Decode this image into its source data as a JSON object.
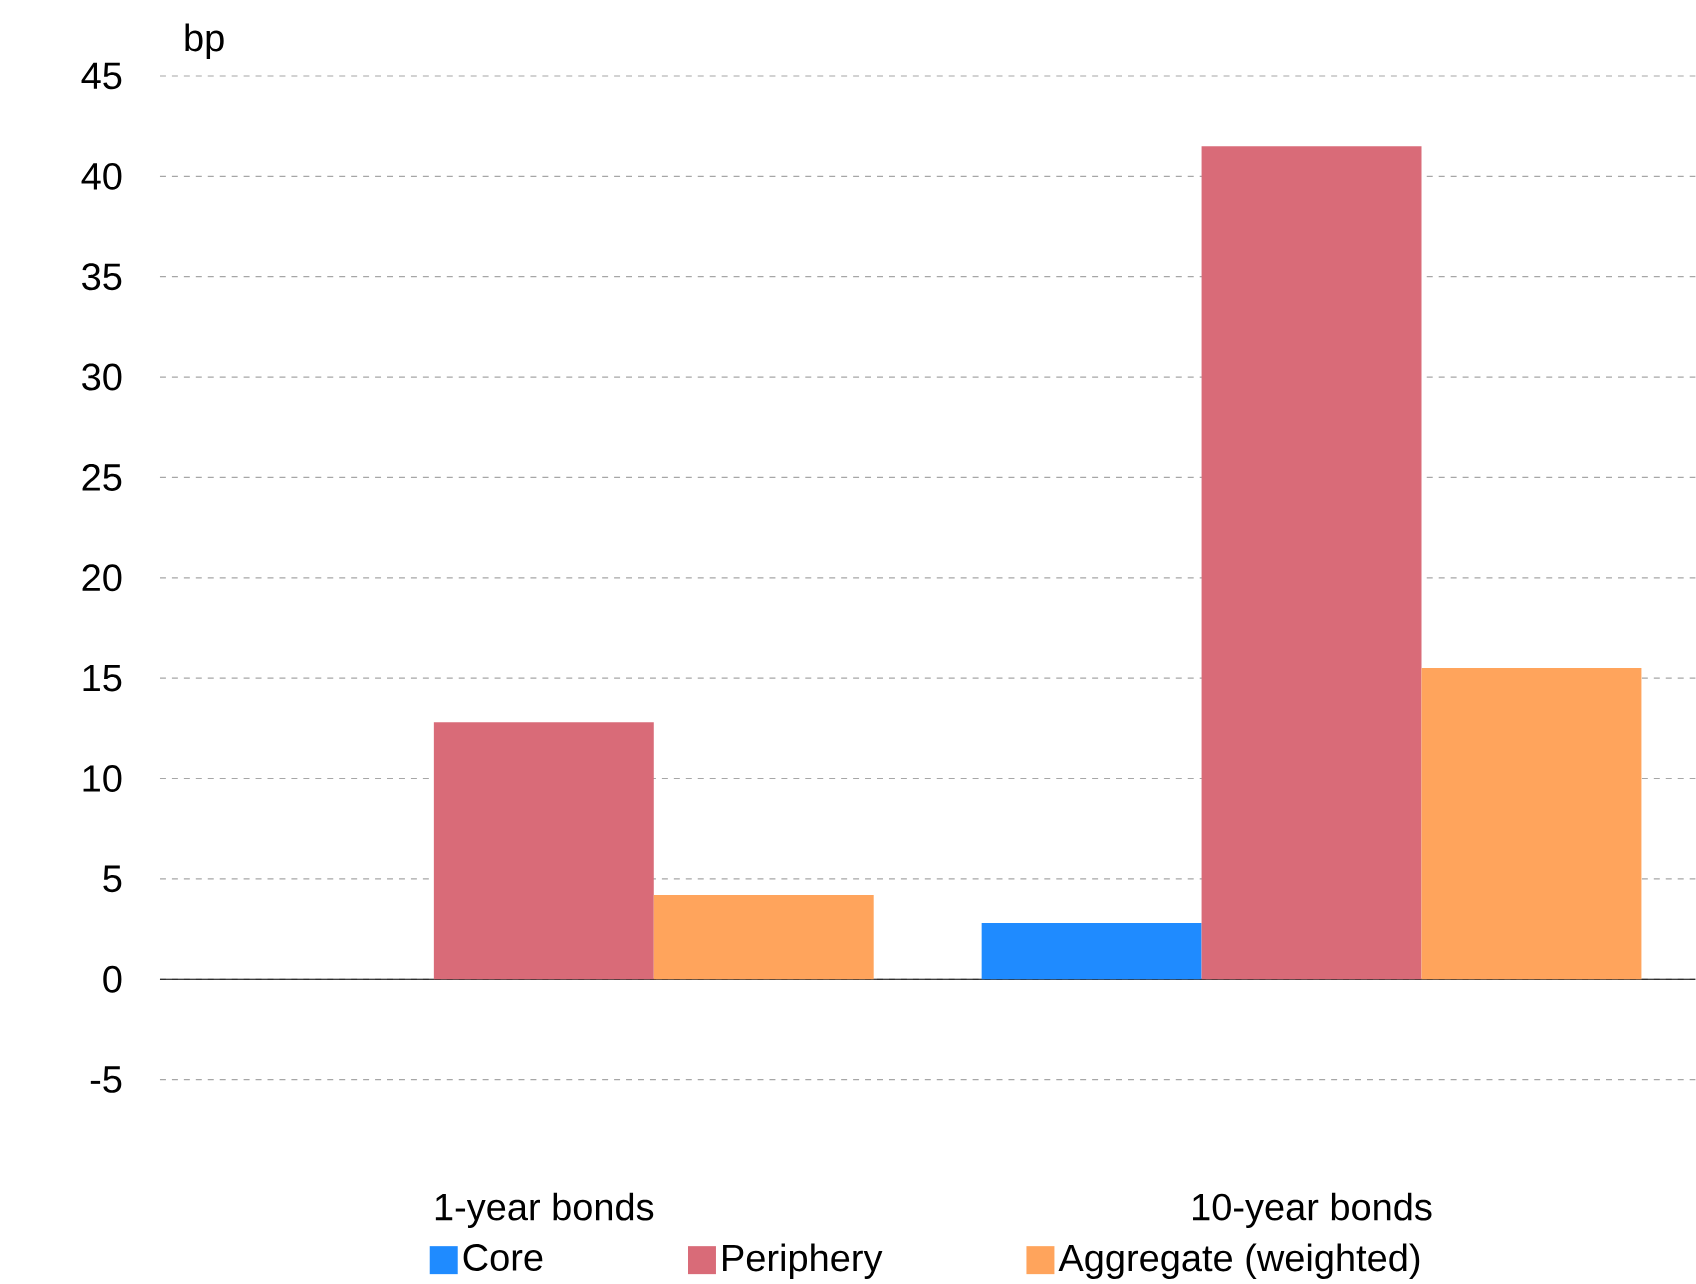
{
  "chart_data": {
    "type": "bar",
    "ylabel": "bp",
    "categories": [
      "1-year bonds",
      "10-year bonds"
    ],
    "series": [
      {
        "name": "Core",
        "color": "#1f8bff",
        "values": [
          0,
          2.8
        ]
      },
      {
        "name": "Periphery",
        "color": "#d96b78",
        "values": [
          12.8,
          41.5
        ]
      },
      {
        "name": "Aggregate (weighted)",
        "color": "#ffa45c",
        "values": [
          4.2,
          15.5
        ]
      }
    ],
    "ylim": [
      -5,
      45
    ],
    "yticks": [
      -5,
      0,
      5,
      10,
      15,
      20,
      25,
      30,
      35,
      40,
      45
    ],
    "grid": "y",
    "legend": "bottom"
  }
}
